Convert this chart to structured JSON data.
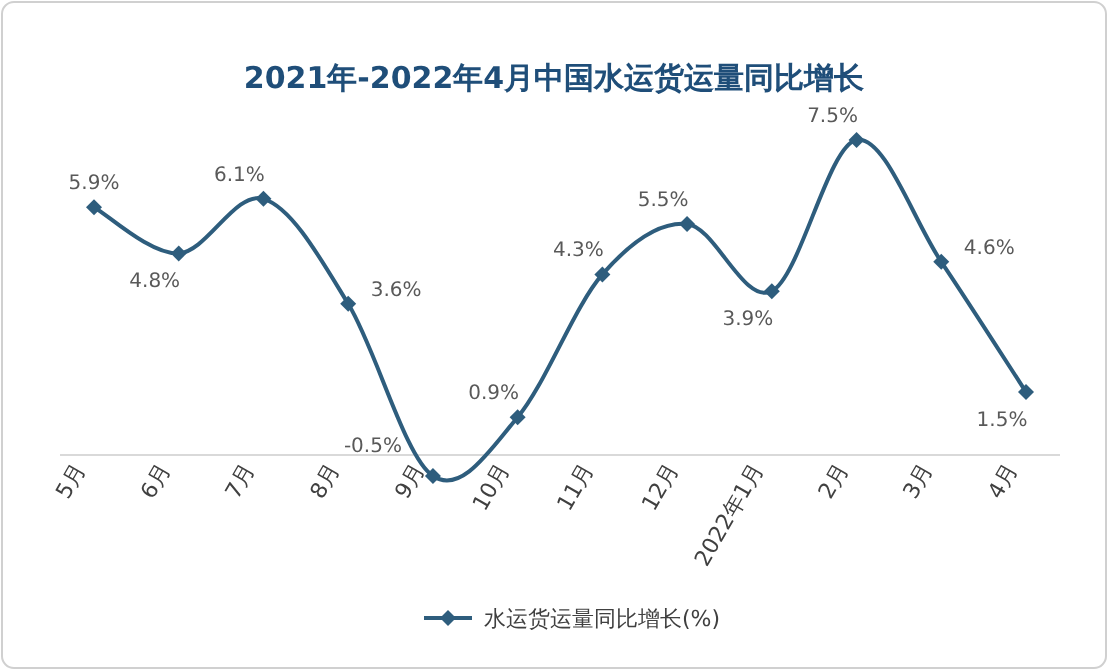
{
  "chart_data": {
    "type": "line",
    "title": "2021年-2022年4月中国水运货运量同比增长",
    "categories": [
      "5月",
      "6月",
      "7月",
      "8月",
      "9月",
      "10月",
      "11月",
      "12月",
      "2022年1月",
      "2月",
      "3月",
      "4月"
    ],
    "series": [
      {
        "name": "水运货运量同比增长(%)",
        "color": "#2e5d7d",
        "values": [
          5.9,
          4.8,
          6.1,
          3.6,
          -0.5,
          0.9,
          4.3,
          5.5,
          3.9,
          7.5,
          4.6,
          1.5
        ],
        "value_labels": [
          "5.9%",
          "4.8%",
          "6.1%",
          "3.6%",
          "-0.5%",
          "0.9%",
          "4.3%",
          "5.5%",
          "3.9%",
          "7.5%",
          "4.6%",
          "1.5%"
        ]
      }
    ],
    "marker": "diamond",
    "line_style": "solid",
    "legend": "bottom"
  }
}
